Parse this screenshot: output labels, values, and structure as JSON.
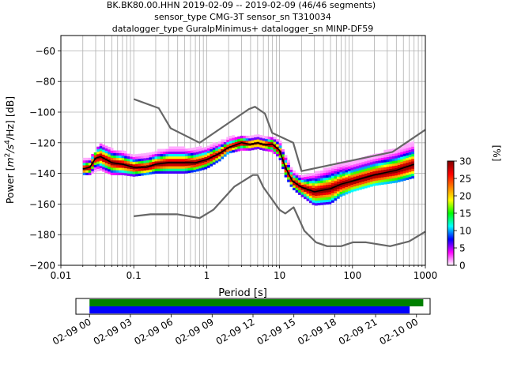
{
  "chart_data": [
    {
      "type": "heatmap",
      "title_lines": [
        "BK.BK80.00.HHN   2019-02-09 -- 2019-02-09  (46/46 segments)",
        "sensor_type CMG-3T sensor_sn T310034",
        "datalogger_type GuralpMinimus+ datalogger_sn MINP-DF59"
      ],
      "xlabel": "Period [s]",
      "ylabel_parts": {
        "a": "Power [",
        "unit": "m",
        "exp1": "2",
        "mid": "/s",
        "exp2": "4",
        "tail": "/Hz] [dB]"
      },
      "x_scale": "log",
      "xlim": [
        0.01,
        1000
      ],
      "ylim": [
        -200,
        -50
      ],
      "x_ticks": [
        {
          "value": 0.01,
          "label": "0.01"
        },
        {
          "value": 0.1,
          "label": "0.1"
        },
        {
          "value": 1,
          "label": "1"
        },
        {
          "value": 10,
          "label": "10"
        },
        {
          "value": 100,
          "label": "100"
        },
        {
          "value": 1000,
          "label": "1000"
        }
      ],
      "y_ticks": [
        {
          "value": -60,
          "label": "−60"
        },
        {
          "value": -80,
          "label": "−80"
        },
        {
          "value": -100,
          "label": "−100"
        },
        {
          "value": -120,
          "label": "−120"
        },
        {
          "value": -140,
          "label": "−140"
        },
        {
          "value": -160,
          "label": "−160"
        },
        {
          "value": -180,
          "label": "−180"
        },
        {
          "value": -200,
          "label": "−200"
        }
      ],
      "grid": true,
      "colorbar": {
        "label": "[%]",
        "range": [
          0,
          30
        ],
        "ticks": [
          {
            "value": 0,
            "label": "0"
          },
          {
            "value": 5,
            "label": "5"
          },
          {
            "value": 10,
            "label": "10"
          },
          {
            "value": 15,
            "label": "15"
          },
          {
            "value": 20,
            "label": "20"
          },
          {
            "value": 25,
            "label": "25"
          },
          {
            "value": 30,
            "label": "30"
          }
        ],
        "colors": [
          "#ffffff",
          "#ff00ff",
          "#0000ff",
          "#00ffff",
          "#00ff00",
          "#ffff00",
          "#ff8000",
          "#ff0000",
          "#800000"
        ]
      },
      "band": [
        {
          "period": 0.02,
          "low": -141,
          "high": -131
        },
        {
          "period": 0.025,
          "low": -141,
          "high": -131
        },
        {
          "period": 0.03,
          "low": -139,
          "high": -126
        },
        {
          "period": 0.035,
          "low": -138,
          "high": -122
        },
        {
          "period": 0.05,
          "low": -141,
          "high": -125
        },
        {
          "period": 0.07,
          "low": -141,
          "high": -126
        },
        {
          "period": 0.1,
          "low": -142,
          "high": -129
        },
        {
          "period": 0.15,
          "low": -141,
          "high": -128
        },
        {
          "period": 0.2,
          "low": -140,
          "high": -126
        },
        {
          "period": 0.3,
          "low": -140,
          "high": -124
        },
        {
          "period": 0.5,
          "low": -140,
          "high": -124
        },
        {
          "period": 0.7,
          "low": -139,
          "high": -124
        },
        {
          "period": 1,
          "low": -137,
          "high": -123
        },
        {
          "period": 1.5,
          "low": -132,
          "high": -120
        },
        {
          "period": 2,
          "low": -127,
          "high": -117
        },
        {
          "period": 3,
          "low": -125,
          "high": -116
        },
        {
          "period": 4,
          "low": -125,
          "high": -117
        },
        {
          "period": 5,
          "low": -124,
          "high": -116
        },
        {
          "period": 6,
          "low": -125,
          "high": -117
        },
        {
          "period": 8,
          "low": -126,
          "high": -117
        },
        {
          "period": 10,
          "low": -130,
          "high": -119
        },
        {
          "period": 12,
          "low": -142,
          "high": -128
        },
        {
          "period": 15,
          "low": -150,
          "high": -138
        },
        {
          "period": 20,
          "low": -155,
          "high": -142
        },
        {
          "period": 30,
          "low": -161,
          "high": -140
        },
        {
          "period": 50,
          "low": -160,
          "high": -136
        },
        {
          "period": 70,
          "low": -155,
          "high": -133
        },
        {
          "period": 100,
          "low": -152,
          "high": -132
        },
        {
          "period": 200,
          "low": -148,
          "high": -128
        },
        {
          "period": 400,
          "low": -146,
          "high": -124
        },
        {
          "period": 700,
          "low": -143,
          "high": -120
        }
      ],
      "mean_curve": [
        {
          "x": 0.02,
          "y": -137
        },
        {
          "x": 0.025,
          "y": -136
        },
        {
          "x": 0.03,
          "y": -130
        },
        {
          "x": 0.035,
          "y": -129
        },
        {
          "x": 0.05,
          "y": -133
        },
        {
          "x": 0.07,
          "y": -134
        },
        {
          "x": 0.1,
          "y": -136
        },
        {
          "x": 0.15,
          "y": -136
        },
        {
          "x": 0.2,
          "y": -134
        },
        {
          "x": 0.3,
          "y": -133
        },
        {
          "x": 0.5,
          "y": -133
        },
        {
          "x": 0.7,
          "y": -133
        },
        {
          "x": 1,
          "y": -131
        },
        {
          "x": 1.5,
          "y": -127
        },
        {
          "x": 2,
          "y": -123
        },
        {
          "x": 3,
          "y": -120
        },
        {
          "x": 4,
          "y": -121
        },
        {
          "x": 5,
          "y": -120
        },
        {
          "x": 6,
          "y": -121
        },
        {
          "x": 8,
          "y": -121
        },
        {
          "x": 10,
          "y": -125
        },
        {
          "x": 12,
          "y": -136
        },
        {
          "x": 15,
          "y": -145
        },
        {
          "x": 20,
          "y": -149
        },
        {
          "x": 30,
          "y": -152
        },
        {
          "x": 50,
          "y": -150
        },
        {
          "x": 70,
          "y": -147
        },
        {
          "x": 100,
          "y": -145
        },
        {
          "x": 200,
          "y": -141
        },
        {
          "x": 400,
          "y": -138
        },
        {
          "x": 700,
          "y": -134
        }
      ],
      "high_noise_model": [
        {
          "x": 0.1,
          "y": -91.5
        },
        {
          "x": 0.22,
          "y": -97.4
        },
        {
          "x": 0.32,
          "y": -110.5
        },
        {
          "x": 0.8,
          "y": -120
        },
        {
          "x": 3.8,
          "y": -98
        },
        {
          "x": 4.6,
          "y": -96.5
        },
        {
          "x": 6.3,
          "y": -101
        },
        {
          "x": 7.9,
          "y": -113.5
        },
        {
          "x": 15.4,
          "y": -120
        },
        {
          "x": 20,
          "y": -138.5
        },
        {
          "x": 354.8,
          "y": -126
        },
        {
          "x": 1000,
          "y": -111.5
        }
      ],
      "low_noise_model": [
        {
          "x": 0.1,
          "y": -168
        },
        {
          "x": 0.17,
          "y": -166.7
        },
        {
          "x": 0.4,
          "y": -166.7
        },
        {
          "x": 0.8,
          "y": -169.2
        },
        {
          "x": 1.24,
          "y": -163.7
        },
        {
          "x": 2.4,
          "y": -148.6
        },
        {
          "x": 4.3,
          "y": -141.1
        },
        {
          "x": 5,
          "y": -141.1
        },
        {
          "x": 6,
          "y": -149
        },
        {
          "x": 10,
          "y": -163.8
        },
        {
          "x": 12,
          "y": -166.2
        },
        {
          "x": 15.6,
          "y": -162.1
        },
        {
          "x": 21.9,
          "y": -177.5
        },
        {
          "x": 31.6,
          "y": -185
        },
        {
          "x": 45,
          "y": -187.5
        },
        {
          "x": 70,
          "y": -187.5
        },
        {
          "x": 101,
          "y": -185
        },
        {
          "x": 154,
          "y": -185
        },
        {
          "x": 328,
          "y": -187.5
        },
        {
          "x": 600,
          "y": -184.4
        },
        {
          "x": 1000,
          "y": -178
        }
      ]
    },
    {
      "type": "timeline",
      "time_range": [
        "2019-02-09T00:00:00",
        "2019-02-10T01:00:00"
      ],
      "ticks": [
        {
          "hours": 0,
          "label": "02-09 00"
        },
        {
          "hours": 3,
          "label": "02-09 03"
        },
        {
          "hours": 6,
          "label": "02-09 06"
        },
        {
          "hours": 9,
          "label": "02-09 09"
        },
        {
          "hours": 12,
          "label": "02-09 12"
        },
        {
          "hours": 15,
          "label": "02-09 15"
        },
        {
          "hours": 18,
          "label": "02-09 18"
        },
        {
          "hours": 21,
          "label": "02-09 21"
        },
        {
          "hours": 24,
          "label": "02-10 00"
        }
      ],
      "bars": [
        {
          "start_hours": 0,
          "end_hours": 24.5,
          "color": "#008000"
        },
        {
          "start_hours": 0,
          "end_hours": 23.5,
          "color": "#0000ff"
        }
      ]
    }
  ]
}
